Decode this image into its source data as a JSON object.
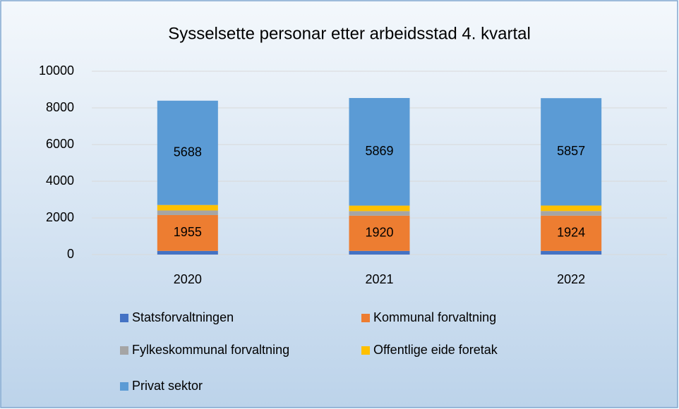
{
  "chart_data": {
    "type": "stacked_bar",
    "title": "Sysselsette personar etter arbeidsstad 4. kvartal",
    "categories": [
      "2020",
      "2021",
      "2022"
    ],
    "series": [
      {
        "name": "Statsforvaltningen",
        "color": "#4472c4",
        "values": [
          200,
          200,
          200
        ],
        "labels": false
      },
      {
        "name": "Kommunal forvaltning",
        "color": "#ed7d31",
        "values": [
          1955,
          1920,
          1924
        ],
        "labels": true
      },
      {
        "name": "Fylkeskommunal forvaltning",
        "color": "#a5a5a5",
        "values": [
          250,
          250,
          250
        ],
        "labels": false
      },
      {
        "name": "Offentlige eide foretak",
        "color": "#ffc000",
        "values": [
          300,
          300,
          300
        ],
        "labels": false
      },
      {
        "name": "Privat sektor",
        "color": "#5b9bd5",
        "values": [
          5688,
          5869,
          5857
        ],
        "labels": true
      }
    ],
    "ylim": [
      0,
      10000
    ],
    "yticks": [
      0,
      2000,
      4000,
      6000,
      8000,
      10000
    ],
    "grid": true
  }
}
